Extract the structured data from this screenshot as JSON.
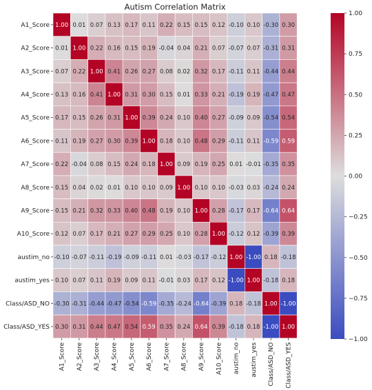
{
  "chart_data": {
    "type": "heatmap",
    "title": "Autism Correlation Matrix",
    "rows": [
      "A1_Score",
      "A2_Score",
      "A3_Score",
      "A4_Score",
      "A5_Score",
      "A6_Score",
      "A7_Score",
      "A8_Score",
      "A9_Score",
      "A10_Score",
      "austim_no",
      "austim_yes",
      "Class/ASD_NO",
      "Class/ASD_YES"
    ],
    "columns": [
      "A1_Score",
      "A2_Score",
      "A3_Score",
      "A4_Score",
      "A5_Score",
      "A6_Score",
      "A7_Score",
      "A8_Score",
      "A9_Score",
      "A10_Score",
      "austim_no",
      "austim_yes",
      "Class/ASD_NO",
      "Class/ASD_YES"
    ],
    "values": [
      [
        1.0,
        0.01,
        0.07,
        0.13,
        0.17,
        0.11,
        0.22,
        0.15,
        0.15,
        0.12,
        -0.1,
        0.1,
        -0.3,
        0.3
      ],
      [
        0.01,
        1.0,
        0.22,
        0.16,
        0.15,
        0.19,
        -0.04,
        0.04,
        0.21,
        0.07,
        -0.07,
        0.07,
        -0.31,
        0.31
      ],
      [
        0.07,
        0.22,
        1.0,
        0.41,
        0.26,
        0.27,
        0.08,
        0.02,
        0.32,
        0.17,
        -0.11,
        0.11,
        -0.44,
        0.44
      ],
      [
        0.13,
        0.16,
        0.41,
        1.0,
        0.31,
        0.3,
        0.15,
        0.01,
        0.33,
        0.21,
        -0.19,
        0.19,
        -0.47,
        0.47
      ],
      [
        0.17,
        0.15,
        0.26,
        0.31,
        1.0,
        0.39,
        0.24,
        0.1,
        0.4,
        0.27,
        -0.09,
        0.09,
        -0.54,
        0.54
      ],
      [
        0.11,
        0.19,
        0.27,
        0.3,
        0.39,
        1.0,
        0.18,
        0.1,
        0.48,
        0.29,
        -0.11,
        0.11,
        -0.59,
        0.59
      ],
      [
        0.22,
        -0.04,
        0.08,
        0.15,
        0.24,
        0.18,
        1.0,
        0.09,
        0.19,
        0.25,
        0.01,
        -0.01,
        -0.35,
        0.35
      ],
      [
        0.15,
        0.04,
        0.02,
        0.01,
        0.1,
        0.1,
        0.09,
        1.0,
        0.1,
        0.1,
        -0.03,
        0.03,
        -0.24,
        0.24
      ],
      [
        0.15,
        0.21,
        0.32,
        0.33,
        0.4,
        0.48,
        0.19,
        0.1,
        1.0,
        0.28,
        -0.17,
        0.17,
        -0.64,
        0.64
      ],
      [
        0.12,
        0.07,
        0.17,
        0.21,
        0.27,
        0.29,
        0.25,
        0.1,
        0.28,
        1.0,
        -0.12,
        0.12,
        -0.39,
        0.39
      ],
      [
        -0.1,
        -0.07,
        -0.11,
        -0.19,
        -0.09,
        -0.11,
        0.01,
        -0.03,
        -0.17,
        -0.12,
        1.0,
        -1.0,
        0.18,
        -0.18
      ],
      [
        0.1,
        0.07,
        0.11,
        0.19,
        0.09,
        0.11,
        -0.01,
        0.03,
        0.17,
        0.12,
        -1.0,
        1.0,
        -0.18,
        0.18
      ],
      [
        -0.3,
        -0.31,
        -0.44,
        -0.47,
        -0.54,
        -0.59,
        -0.35,
        -0.24,
        -0.64,
        -0.39,
        0.18,
        -0.18,
        1.0,
        -1.0
      ],
      [
        0.3,
        0.31,
        0.44,
        0.47,
        0.54,
        0.59,
        0.35,
        0.24,
        0.64,
        0.39,
        -0.18,
        0.18,
        -1.0,
        1.0
      ]
    ],
    "value_format": "0.00",
    "vmin": -1.0,
    "vmax": 1.0,
    "colormap": "coolwarm",
    "colormap_stops": [
      "#3b4cc0",
      "#dddddd",
      "#b40426"
    ],
    "colorbar": {
      "ticks": [
        1.0,
        0.75,
        0.5,
        0.25,
        0.0,
        -0.25,
        -0.5,
        -0.75,
        -1.0
      ],
      "tick_labels": [
        "1.00",
        "0.75",
        "0.50",
        "0.25",
        "0.00",
        "−0.25",
        "−0.50",
        "−0.75",
        "−1.00"
      ],
      "position": "right"
    },
    "cell_separator_color": "#ffffff"
  }
}
